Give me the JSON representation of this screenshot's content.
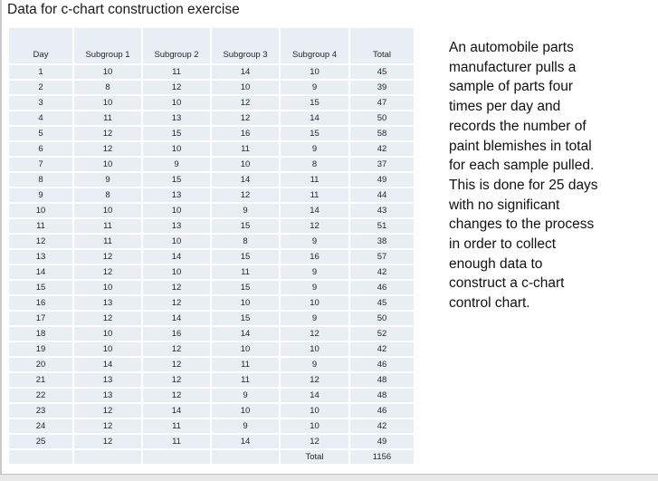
{
  "title": "Data for c-chart construction exercise",
  "table": {
    "columns": [
      "Day",
      "Subgroup 1",
      "Subgroup 2",
      "Subgroup 3",
      "Subgroup 4",
      "Total"
    ],
    "rows": [
      [
        1,
        10,
        11,
        14,
        10,
        45
      ],
      [
        2,
        8,
        12,
        10,
        9,
        39
      ],
      [
        3,
        10,
        10,
        12,
        15,
        47
      ],
      [
        4,
        11,
        13,
        12,
        14,
        50
      ],
      [
        5,
        12,
        15,
        16,
        15,
        58
      ],
      [
        6,
        12,
        10,
        11,
        9,
        42
      ],
      [
        7,
        10,
        9,
        10,
        8,
        37
      ],
      [
        8,
        9,
        15,
        14,
        11,
        49
      ],
      [
        9,
        8,
        13,
        12,
        11,
        44
      ],
      [
        10,
        10,
        10,
        9,
        14,
        43
      ],
      [
        11,
        11,
        13,
        15,
        12,
        51
      ],
      [
        12,
        11,
        10,
        8,
        9,
        38
      ],
      [
        13,
        12,
        14,
        15,
        16,
        57
      ],
      [
        14,
        12,
        10,
        11,
        9,
        42
      ],
      [
        15,
        10,
        12,
        15,
        9,
        46
      ],
      [
        16,
        13,
        12,
        10,
        10,
        45
      ],
      [
        17,
        12,
        14,
        15,
        9,
        50
      ],
      [
        18,
        10,
        16,
        14,
        12,
        52
      ],
      [
        19,
        10,
        12,
        10,
        10,
        42
      ],
      [
        20,
        14,
        12,
        11,
        9,
        46
      ],
      [
        21,
        13,
        12,
        11,
        12,
        48
      ],
      [
        22,
        13,
        12,
        9,
        14,
        48
      ],
      [
        23,
        12,
        14,
        10,
        10,
        46
      ],
      [
        24,
        12,
        11,
        9,
        10,
        42
      ],
      [
        25,
        12,
        11,
        14,
        12,
        49
      ]
    ],
    "footer": {
      "label": "Total",
      "value": "1156"
    }
  },
  "description": "An automobile parts\nmanufacturer pulls a\nsample of parts four\ntimes per day and\nrecords the number of\npaint blemishes in total\nfor each sample pulled.\nThis is done for 25 days\nwith no significant\nchanges to the process\nin order to collect\nenough data to\nconstruct a c-chart\ncontrol chart.",
  "colors": {
    "table_cell_fill": "#e9edf4",
    "cell_separator": "#ffffff",
    "table_text": "#262626",
    "scrollbar_track": "#e8e8e8",
    "window_edge": "#c9c9c9"
  }
}
